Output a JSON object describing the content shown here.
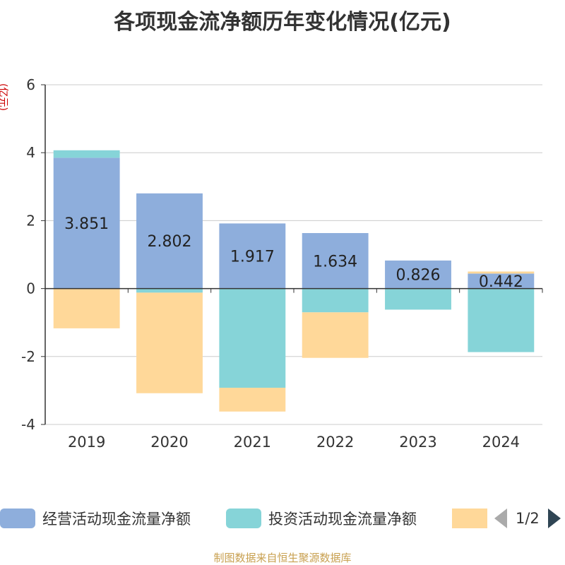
{
  "chart_data": {
    "type": "bar",
    "stacked": true,
    "title": "各项现金流净额历年变化情况(亿元)",
    "ylabel": "(亿元)",
    "categories": [
      "2019",
      "2020",
      "2021",
      "2022",
      "2023",
      "2024"
    ],
    "ylim": [
      -4,
      6
    ],
    "yticks": [
      -4,
      -2,
      0,
      2,
      4,
      6
    ],
    "grid": true,
    "series": [
      {
        "name": "经营活动现金流量净额",
        "color": "#8eaedc",
        "values": [
          3.851,
          2.802,
          1.917,
          1.634,
          0.826,
          0.442
        ],
        "labels": [
          "3.851",
          "2.802",
          "1.917",
          "1.634",
          "0.826",
          "0.442"
        ]
      },
      {
        "name": "投资活动现金流量净额",
        "color": "#86d4d8",
        "values": [
          0.22,
          -0.12,
          -2.92,
          -0.7,
          -0.62,
          -1.87
        ]
      },
      {
        "name": "",
        "color": "#ffd899",
        "values": [
          -1.17,
          -2.96,
          -0.7,
          -1.34,
          0.0,
          0.06
        ]
      }
    ]
  },
  "legend": {
    "items": [
      "经营活动现金流量净额",
      "投资活动现金流量净额",
      ""
    ],
    "page": "1/2"
  },
  "source": "制图数据来自恒生聚源数据库"
}
